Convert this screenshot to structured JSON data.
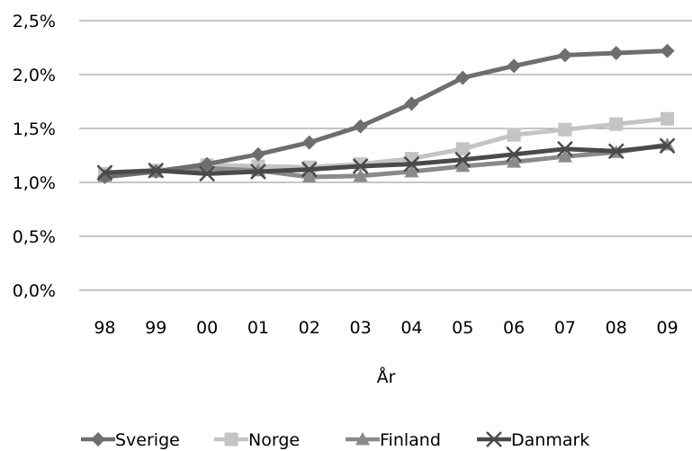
{
  "chart_data": {
    "type": "line",
    "categories": [
      "98",
      "99",
      "00",
      "01",
      "02",
      "03",
      "04",
      "05",
      "06",
      "07",
      "08",
      "09"
    ],
    "xlabel": "År",
    "ylabel": "",
    "ylim": [
      0,
      2.5
    ],
    "yticks": [
      "0,0%",
      "0,5%",
      "1,0%",
      "1,5%",
      "2,0%",
      "2,5%"
    ],
    "grid": "horizontal",
    "legend": "bottom",
    "series": [
      {
        "name": "Sverige",
        "color": "#6e6e6e",
        "marker": "diamond",
        "values": [
          1.05,
          1.1,
          1.17,
          1.26,
          1.37,
          1.52,
          1.73,
          1.97,
          2.08,
          2.18,
          2.2,
          2.22
        ]
      },
      {
        "name": "Norge",
        "color": "#c4c4c4",
        "marker": "square",
        "values": [
          1.08,
          1.11,
          1.16,
          1.15,
          1.14,
          1.17,
          1.22,
          1.31,
          1.44,
          1.49,
          1.54,
          1.59
        ]
      },
      {
        "name": "Finland",
        "color": "#8a8a8a",
        "marker": "triangle",
        "values": [
          1.06,
          1.1,
          1.13,
          1.11,
          1.05,
          1.06,
          1.1,
          1.15,
          1.19,
          1.24,
          1.28,
          1.35
        ]
      },
      {
        "name": "Danmark",
        "color": "#4a4a4a",
        "marker": "x",
        "values": [
          1.09,
          1.11,
          1.08,
          1.1,
          1.12,
          1.15,
          1.17,
          1.21,
          1.26,
          1.31,
          1.29,
          1.34
        ]
      }
    ]
  }
}
